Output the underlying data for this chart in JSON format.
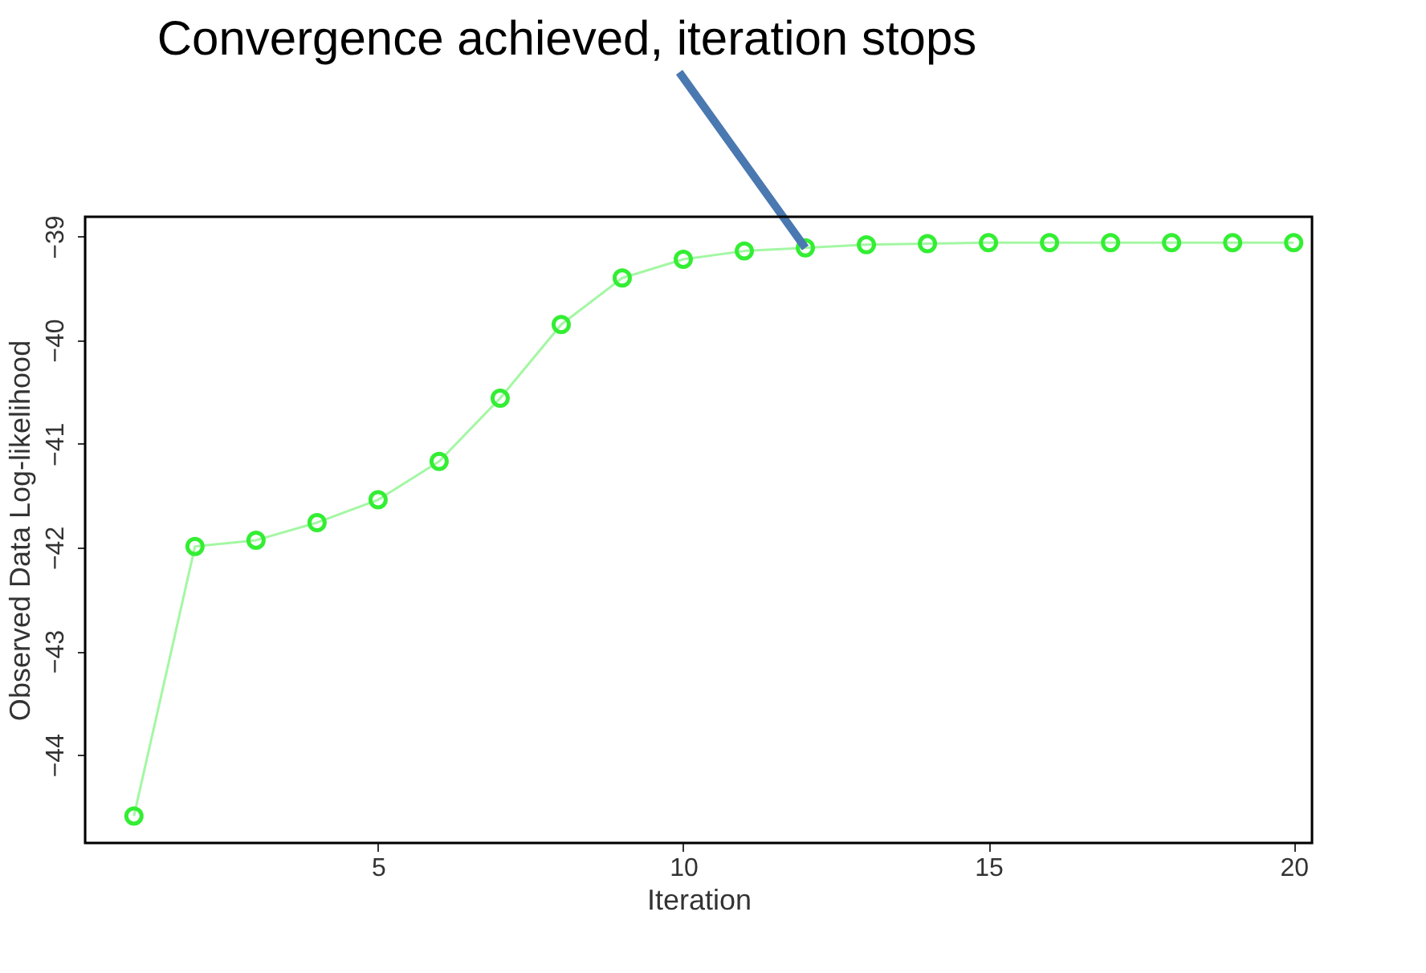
{
  "chart_data": {
    "type": "line",
    "xlabel": "Iteration",
    "ylabel": "Observed Data Log-likelihood",
    "x": [
      1,
      2,
      3,
      4,
      5,
      6,
      7,
      8,
      9,
      10,
      11,
      12,
      13,
      14,
      15,
      16,
      17,
      18,
      19,
      20
    ],
    "series": [
      {
        "color": "#33ee33",
        "values": [
          -44.59,
          -41.99,
          -41.93,
          -41.76,
          -41.54,
          -41.17,
          -40.56,
          -39.85,
          -39.4,
          -39.22,
          -39.14,
          -39.11,
          -39.08,
          -39.07,
          -39.06,
          -39.06,
          -39.06,
          -39.06,
          -39.06,
          -39.06
        ]
      }
    ],
    "xlim": [
      0.2,
      20.3
    ],
    "xticks": [
      5,
      10,
      15,
      20
    ],
    "ylim": [
      -44.85,
      -38.81
    ],
    "yticks": [
      -44,
      -43,
      -42,
      -41,
      -40,
      -39
    ],
    "grid": false,
    "marker": "circle",
    "line_style": "solid",
    "annotations": [
      {
        "text": "Convergence achieved, iteration stops",
        "x": 12,
        "y": -39.11
      }
    ]
  }
}
